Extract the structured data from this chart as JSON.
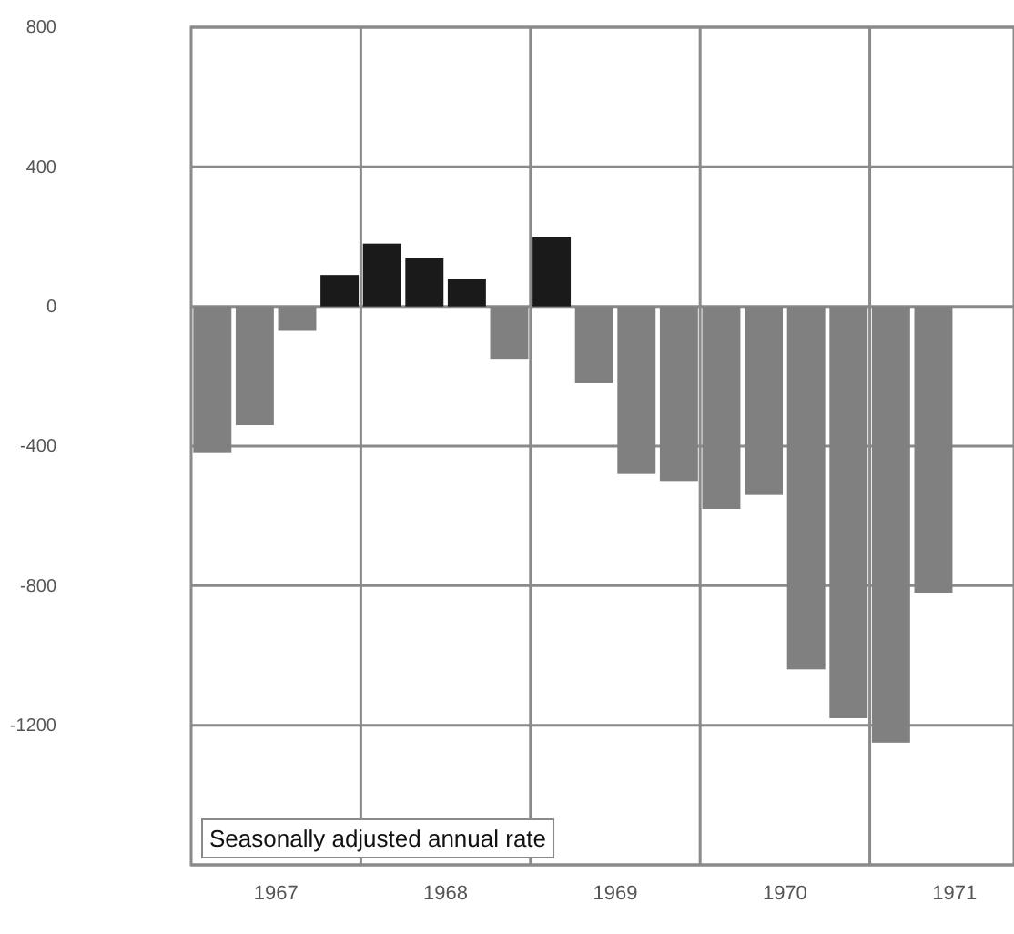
{
  "chart_data": {
    "type": "bar",
    "x": [
      1967.125,
      1967.375,
      1967.625,
      1967.875,
      1968.125,
      1968.375,
      1968.625,
      1968.875,
      1969.125,
      1969.375,
      1969.625,
      1969.875,
      1970.125,
      1970.375,
      1970.625,
      1970.875,
      1971.125,
      1971.375
    ],
    "values": [
      -420,
      -340,
      -70,
      90,
      180,
      140,
      80,
      -150,
      200,
      -220,
      -480,
      -500,
      -580,
      -540,
      -1040,
      -1180,
      -1250,
      -820
    ],
    "colors": [
      "#808080",
      "#808080",
      "#808080",
      "#1a1a1a",
      "#1a1a1a",
      "#1a1a1a",
      "#1a1a1a",
      "#808080",
      "#1a1a1a",
      "#808080",
      "#808080",
      "#808080",
      "#808080",
      "#808080",
      "#808080",
      "#808080",
      "#808080",
      "#808080"
    ],
    "xlim": [
      1967,
      1971.85
    ],
    "xticks": [
      {
        "value": 1967.5,
        "label": "1967"
      },
      {
        "value": 1968,
        "label": null
      },
      {
        "value": 1968.5,
        "label": "1968"
      },
      {
        "value": 1969,
        "label": null
      },
      {
        "value": 1969.5,
        "label": "1969"
      },
      {
        "value": 1970,
        "label": null
      },
      {
        "value": 1970.5,
        "label": "1970"
      },
      {
        "value": 1971,
        "label": null
      },
      {
        "value": 1971.5,
        "label": "1971"
      }
    ],
    "ylim": [
      -1600,
      800
    ],
    "yticks": [
      800,
      400,
      0,
      -400,
      -800,
      -1200,
      {
        "value": -1600,
        "label": null
      }
    ],
    "grid": true,
    "annotations": [
      "Seasonally adjusted annual rate"
    ]
  }
}
